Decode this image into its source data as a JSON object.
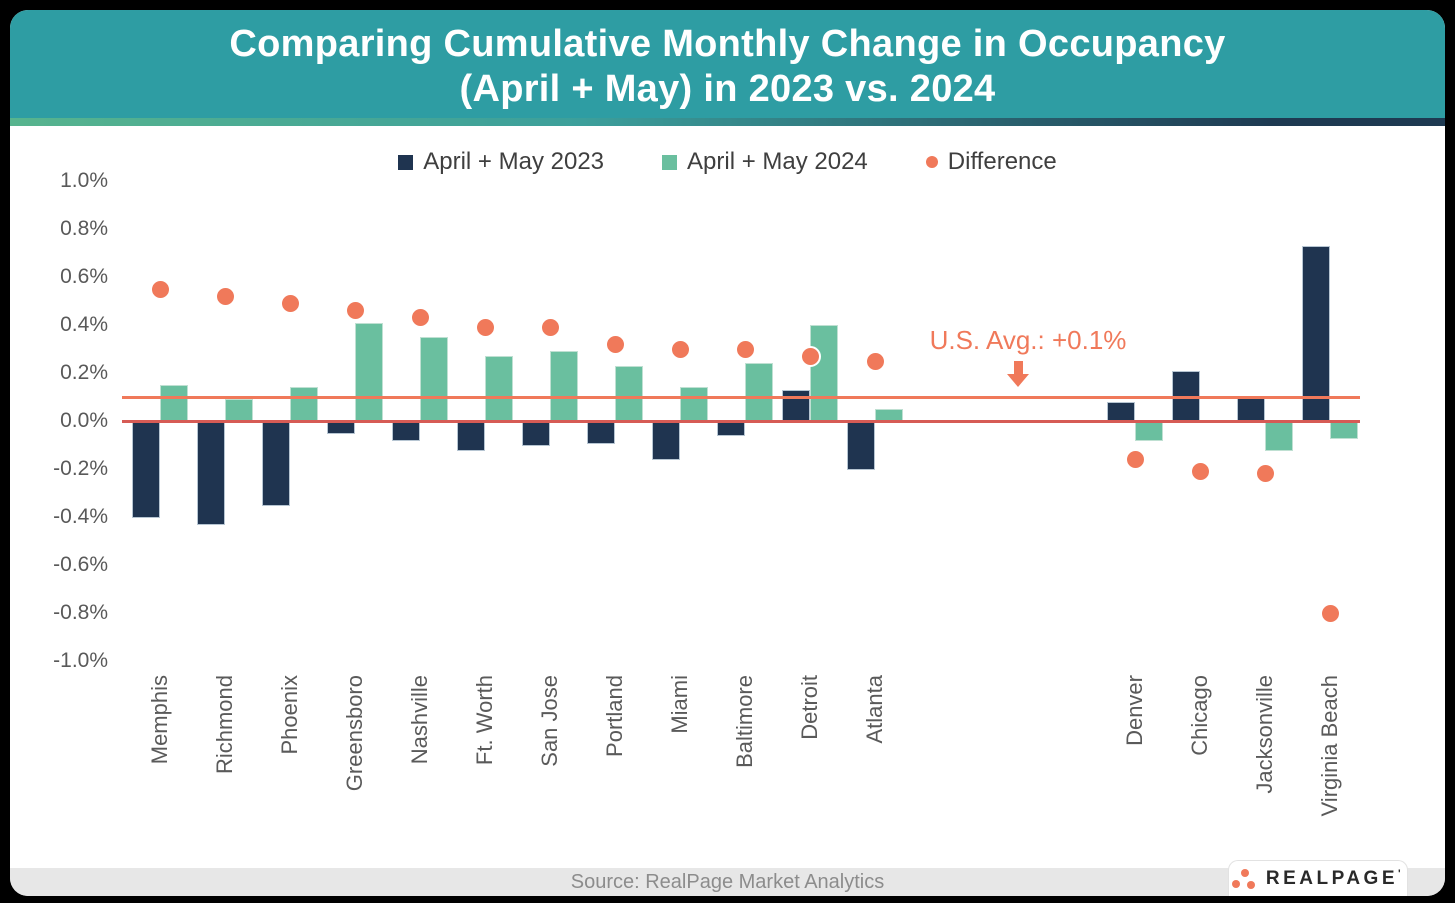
{
  "header": {
    "title_line1": "Comparing Cumulative Monthly Change in Occupancy",
    "title_line2": "(April + May) in 2023 vs. 2024"
  },
  "legend": {
    "items": [
      {
        "label": "April + May 2023",
        "marker": "square",
        "color": "#1F3450"
      },
      {
        "label": "April + May 2024",
        "marker": "square",
        "color": "#6ABF9F"
      },
      {
        "label": "Difference",
        "marker": "circle",
        "color": "#F0795A"
      }
    ]
  },
  "chart_data": {
    "type": "bar",
    "title": "Comparing Cumulative Monthly Change in Occupancy (April + May) in 2023 vs. 2024",
    "categories": [
      "Memphis",
      "Richmond",
      "Phoenix",
      "Greensboro",
      "Nashville",
      "Ft. Worth",
      "San Jose",
      "Portland",
      "Miami",
      "Baltimore",
      "Detroit",
      "Atlanta",
      "Denver",
      "Chicago",
      "Jacksonville",
      "Virginia Beach"
    ],
    "series": [
      {
        "name": "April + May 2023",
        "type": "bar",
        "color": "#1F3450",
        "values": [
          -0.4,
          -0.43,
          -0.35,
          -0.05,
          -0.08,
          -0.12,
          -0.1,
          -0.09,
          -0.16,
          -0.06,
          0.13,
          -0.2,
          0.08,
          0.21,
          0.1,
          0.73
        ]
      },
      {
        "name": "April + May 2024",
        "type": "bar",
        "color": "#6ABF9F",
        "values": [
          0.15,
          0.09,
          0.14,
          0.41,
          0.35,
          0.27,
          0.29,
          0.23,
          0.14,
          0.24,
          0.4,
          0.05,
          -0.08,
          0.0,
          -0.12,
          -0.07
        ]
      },
      {
        "name": "Difference",
        "type": "scatter",
        "color": "#F0795A",
        "values": [
          0.55,
          0.52,
          0.49,
          0.46,
          0.43,
          0.39,
          0.39,
          0.32,
          0.3,
          0.3,
          0.27,
          0.25,
          -0.16,
          -0.21,
          -0.22,
          -0.8
        ]
      }
    ],
    "ylim": [
      -1.0,
      1.0
    ],
    "ytick_step": 0.2,
    "ytick_format": "percent",
    "grid": false,
    "legend_position": "top",
    "gap_after_category": "Atlanta",
    "gap_slots": 3,
    "zero_line": {
      "value": 0.0,
      "color": "#D65B55"
    },
    "avg_line": {
      "value": 0.1,
      "color": "#F0795A"
    },
    "annotation": {
      "text": "U.S. Avg.: +0.1%",
      "value": 0.1
    }
  },
  "footer": {
    "source": "Source: RealPage Market Analytics",
    "logo_text": "REALPAGE",
    "logo_tm": "'"
  }
}
